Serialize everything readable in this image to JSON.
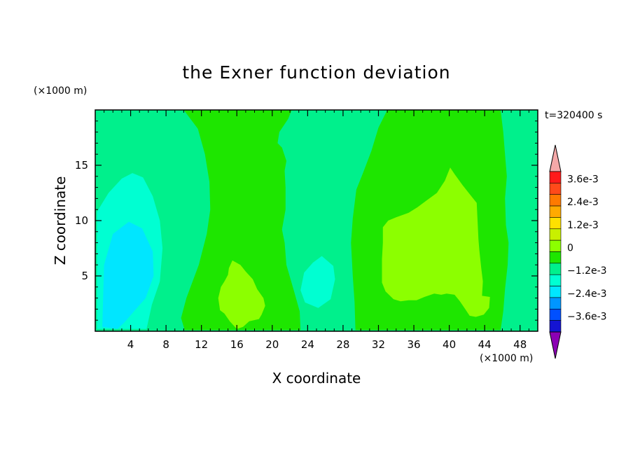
{
  "chart_data": {
    "type": "heatmap",
    "title": "the Exner function deviation",
    "xlabel": "X coordinate",
    "ylabel": "Z coordinate",
    "x_unit": "(×1000 m)",
    "y_unit": "(×1000 m)",
    "time_label": "t=320400 s",
    "xlim": [
      0,
      50
    ],
    "ylim": [
      0,
      20
    ],
    "x_ticks": [
      4,
      8,
      12,
      16,
      20,
      24,
      28,
      32,
      36,
      40,
      44,
      48
    ],
    "y_ticks": [
      5,
      10,
      15
    ],
    "grid": false,
    "legend": "right colorbar",
    "colorbar": {
      "tick_labels": [
        "3.6e-3",
        "2.4e-3",
        "1.2e-3",
        "0",
        "−1.2e-3",
        "−2.4e-3",
        "−3.6e-3"
      ],
      "tick_values": [
        0.0036,
        0.0024,
        0.0012,
        0,
        -0.0012,
        -0.0024,
        -0.0036
      ],
      "levels_top_to_bottom": [
        {
          "min": 0.0042,
          "color": "#f4a8a8"
        },
        {
          "min": 0.0036,
          "max": 0.0042,
          "color": "#ff1a1a"
        },
        {
          "min": 0.003,
          "max": 0.0036,
          "color": "#ff4a1a"
        },
        {
          "min": 0.0024,
          "max": 0.003,
          "color": "#ff7a00"
        },
        {
          "min": 0.0018,
          "max": 0.0024,
          "color": "#ffaa00"
        },
        {
          "min": 0.0012,
          "max": 0.0018,
          "color": "#ffe000"
        },
        {
          "min": 0.0006,
          "max": 0.0012,
          "color": "#c8f000"
        },
        {
          "min": 0.0,
          "max": 0.0006,
          "color": "#8cff00"
        },
        {
          "min": -0.0006,
          "max": 0.0,
          "color": "#1ee600"
        },
        {
          "min": -0.0012,
          "max": -0.0006,
          "color": "#00f08c"
        },
        {
          "min": -0.0018,
          "max": -0.0012,
          "color": "#00ffd2"
        },
        {
          "min": -0.0024,
          "max": -0.0018,
          "color": "#00e6ff"
        },
        {
          "min": -0.003,
          "max": -0.0024,
          "color": "#0096ff"
        },
        {
          "min": -0.0036,
          "max": -0.003,
          "color": "#0050ff"
        },
        {
          "min": -0.0042,
          "max": -0.0036,
          "color": "#1414d2"
        },
        {
          "max": -0.0042,
          "color": "#8c00b4"
        }
      ]
    },
    "fields": {
      "background": {
        "value_range": [
          -0.0012,
          -0.0006
        ],
        "color": "#00f08c"
      },
      "regions": [
        {
          "name": "left cyan-green lobe",
          "value_range": [
            -0.0018,
            -0.0012
          ],
          "color": "#00ffd2",
          "outline_xz": [
            [
              0.2,
              0.2
            ],
            [
              0.2,
              10.8
            ],
            [
              1.5,
              12.5
            ],
            [
              3,
              13.8
            ],
            [
              4.2,
              14.3
            ],
            [
              5.4,
              13.9
            ],
            [
              6.5,
              12.2
            ],
            [
              7.3,
              10
            ],
            [
              7.6,
              7.5
            ],
            [
              7.3,
              4.5
            ],
            [
              6.4,
              2.4
            ],
            [
              5.8,
              0.2
            ]
          ]
        },
        {
          "name": "left cyan core",
          "value_range": [
            -0.0024,
            -0.0018
          ],
          "color": "#00e6ff",
          "outline_xz": [
            [
              0.8,
              0.4
            ],
            [
              1,
              6
            ],
            [
              2,
              8.8
            ],
            [
              3.8,
              9.9
            ],
            [
              5.3,
              9.3
            ],
            [
              6.5,
              7.2
            ],
            [
              6.6,
              5
            ],
            [
              5.7,
              3
            ],
            [
              4.6,
              2
            ],
            [
              3.3,
              0.8
            ],
            [
              2.5,
              0.2
            ]
          ]
        },
        {
          "name": "green band 1",
          "value_range": [
            -0.0006,
            0.0
          ],
          "color": "#1ee600",
          "outline_xz": [
            [
              10,
              20
            ],
            [
              11.6,
              18.3
            ],
            [
              12.4,
              16
            ],
            [
              12.9,
              13.5
            ],
            [
              13,
              11
            ],
            [
              12.6,
              8.8
            ],
            [
              11.7,
              6
            ],
            [
              10.3,
              3
            ],
            [
              9.7,
              1.2
            ],
            [
              10.1,
              0.1
            ],
            [
              23.2,
              0.1
            ],
            [
              23.1,
              1.8
            ],
            [
              22.4,
              3.8
            ],
            [
              21.6,
              6
            ],
            [
              21.4,
              8
            ],
            [
              21.1,
              9.2
            ],
            [
              21.5,
              11
            ],
            [
              21.5,
              13
            ],
            [
              21.4,
              14.5
            ],
            [
              21.6,
              15.4
            ],
            [
              21.1,
              16.6
            ],
            [
              20.6,
              17
            ],
            [
              20.8,
              18
            ],
            [
              21.8,
              19.2
            ],
            [
              22.2,
              20
            ]
          ]
        },
        {
          "name": "central cyan blob",
          "value_range": [
            -0.0018,
            -0.0012
          ],
          "color": "#00ffd2",
          "outline_xz": [
            [
              25.6,
              6.8
            ],
            [
              24.6,
              6.2
            ],
            [
              23.6,
              5.3
            ],
            [
              23.2,
              3.7
            ],
            [
              23.7,
              2.6
            ],
            [
              25.2,
              2.1
            ],
            [
              26.6,
              2.9
            ],
            [
              27.1,
              4.7
            ],
            [
              26.9,
              5.9
            ]
          ]
        },
        {
          "name": "green band 2",
          "value_range": [
            -0.0006,
            0.0
          ],
          "color": "#1ee600",
          "outline_xz": [
            [
              33,
              20
            ],
            [
              32,
              18.4
            ],
            [
              31.2,
              16.3
            ],
            [
              30.3,
              14.4
            ],
            [
              29.5,
              12.8
            ],
            [
              29.1,
              10.2
            ],
            [
              28.9,
              8
            ],
            [
              29.1,
              5
            ],
            [
              29.3,
              2.6
            ],
            [
              29.4,
              0.1
            ],
            [
              45.8,
              0.1
            ],
            [
              46.1,
              1.8
            ],
            [
              46.3,
              3.8
            ],
            [
              46.6,
              6
            ],
            [
              46.7,
              8
            ],
            [
              46.4,
              9.6
            ],
            [
              46.3,
              12
            ],
            [
              46.5,
              14
            ],
            [
              46.3,
              16
            ],
            [
              46.1,
              18
            ],
            [
              45.8,
              20
            ]
          ]
        },
        {
          "name": "south green patch",
          "value_range": [
            0.0,
            0.0006
          ],
          "color": "#8cff00",
          "outline_xz": [
            [
              15.5,
              6.4
            ],
            [
              16.4,
              6
            ],
            [
              17,
              5.4
            ],
            [
              17.8,
              4.7
            ],
            [
              18.3,
              3.8
            ],
            [
              19,
              3
            ],
            [
              19.2,
              2.3
            ],
            [
              18.8,
              1.5
            ],
            [
              18.5,
              1.1
            ],
            [
              17.4,
              0.9
            ],
            [
              16.7,
              0.4
            ],
            [
              16,
              0.2
            ],
            [
              15.2,
              0.9
            ],
            [
              14.6,
              1.6
            ],
            [
              14.1,
              1.9
            ],
            [
              13.9,
              3
            ],
            [
              14.2,
              4
            ],
            [
              14.6,
              4.5
            ],
            [
              15,
              5.1
            ],
            [
              15.1,
              5.7
            ]
          ]
        },
        {
          "name": "east green patch",
          "value_range": [
            0.0,
            0.0006
          ],
          "color": "#8cff00",
          "outline_xz": [
            [
              40.1,
              14.8
            ],
            [
              40.6,
              14.2
            ],
            [
              41.5,
              13.2
            ],
            [
              42.3,
              12.4
            ],
            [
              43.1,
              11.6
            ],
            [
              43.2,
              10
            ],
            [
              43.3,
              8.3
            ],
            [
              43.4,
              7.3
            ],
            [
              43.6,
              5.8
            ],
            [
              43.8,
              4.5
            ],
            [
              43.7,
              3.2
            ],
            [
              44.6,
              3.1
            ],
            [
              44.5,
              2.1
            ],
            [
              43.9,
              1.5
            ],
            [
              43,
              1.3
            ],
            [
              42.3,
              1.4
            ],
            [
              41.8,
              2
            ],
            [
              41.2,
              2.7
            ],
            [
              40.6,
              3.3
            ],
            [
              39.7,
              3.4
            ],
            [
              39.1,
              3.3
            ],
            [
              38.3,
              3.4
            ],
            [
              37.2,
              3.1
            ],
            [
              36.3,
              2.8
            ],
            [
              35.4,
              2.8
            ],
            [
              34.5,
              2.7
            ],
            [
              33.7,
              2.9
            ],
            [
              32.8,
              3.6
            ],
            [
              32.4,
              4.4
            ],
            [
              32.4,
              6.5
            ],
            [
              32.5,
              8
            ],
            [
              32.5,
              9.4
            ],
            [
              33.1,
              10
            ],
            [
              34,
              10.3
            ],
            [
              35.4,
              10.7
            ],
            [
              36.4,
              11.2
            ],
            [
              37.4,
              11.8
            ],
            [
              38.6,
              12.5
            ],
            [
              39.5,
              13.6
            ]
          ]
        }
      ]
    }
  }
}
